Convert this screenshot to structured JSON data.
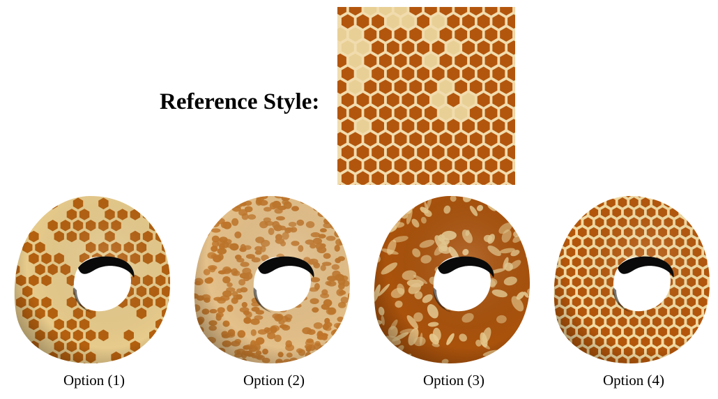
{
  "reference": {
    "label": "Reference Style:",
    "colors": {
      "cell": "#b3560d",
      "cell_light": "#e8cf95",
      "border": "#f1dcae"
    }
  },
  "options": [
    {
      "label": "Option (1)",
      "texture": "sparse-hex-cells",
      "colors": {
        "base": "#e7cb8c",
        "cell": "#b4600f"
      }
    },
    {
      "label": "Option (2)",
      "texture": "dense-small-spots",
      "colors": {
        "base": "#e4c08a",
        "cell": "#c0762a"
      }
    },
    {
      "label": "Option (3)",
      "texture": "marbled-blobs",
      "colors": {
        "base": "#a9520c",
        "cell": "#e7c98e"
      }
    },
    {
      "label": "Option (4)",
      "texture": "regular-hex-grid",
      "colors": {
        "base": "#f3dca4",
        "cell": "#b5570b"
      }
    }
  ]
}
